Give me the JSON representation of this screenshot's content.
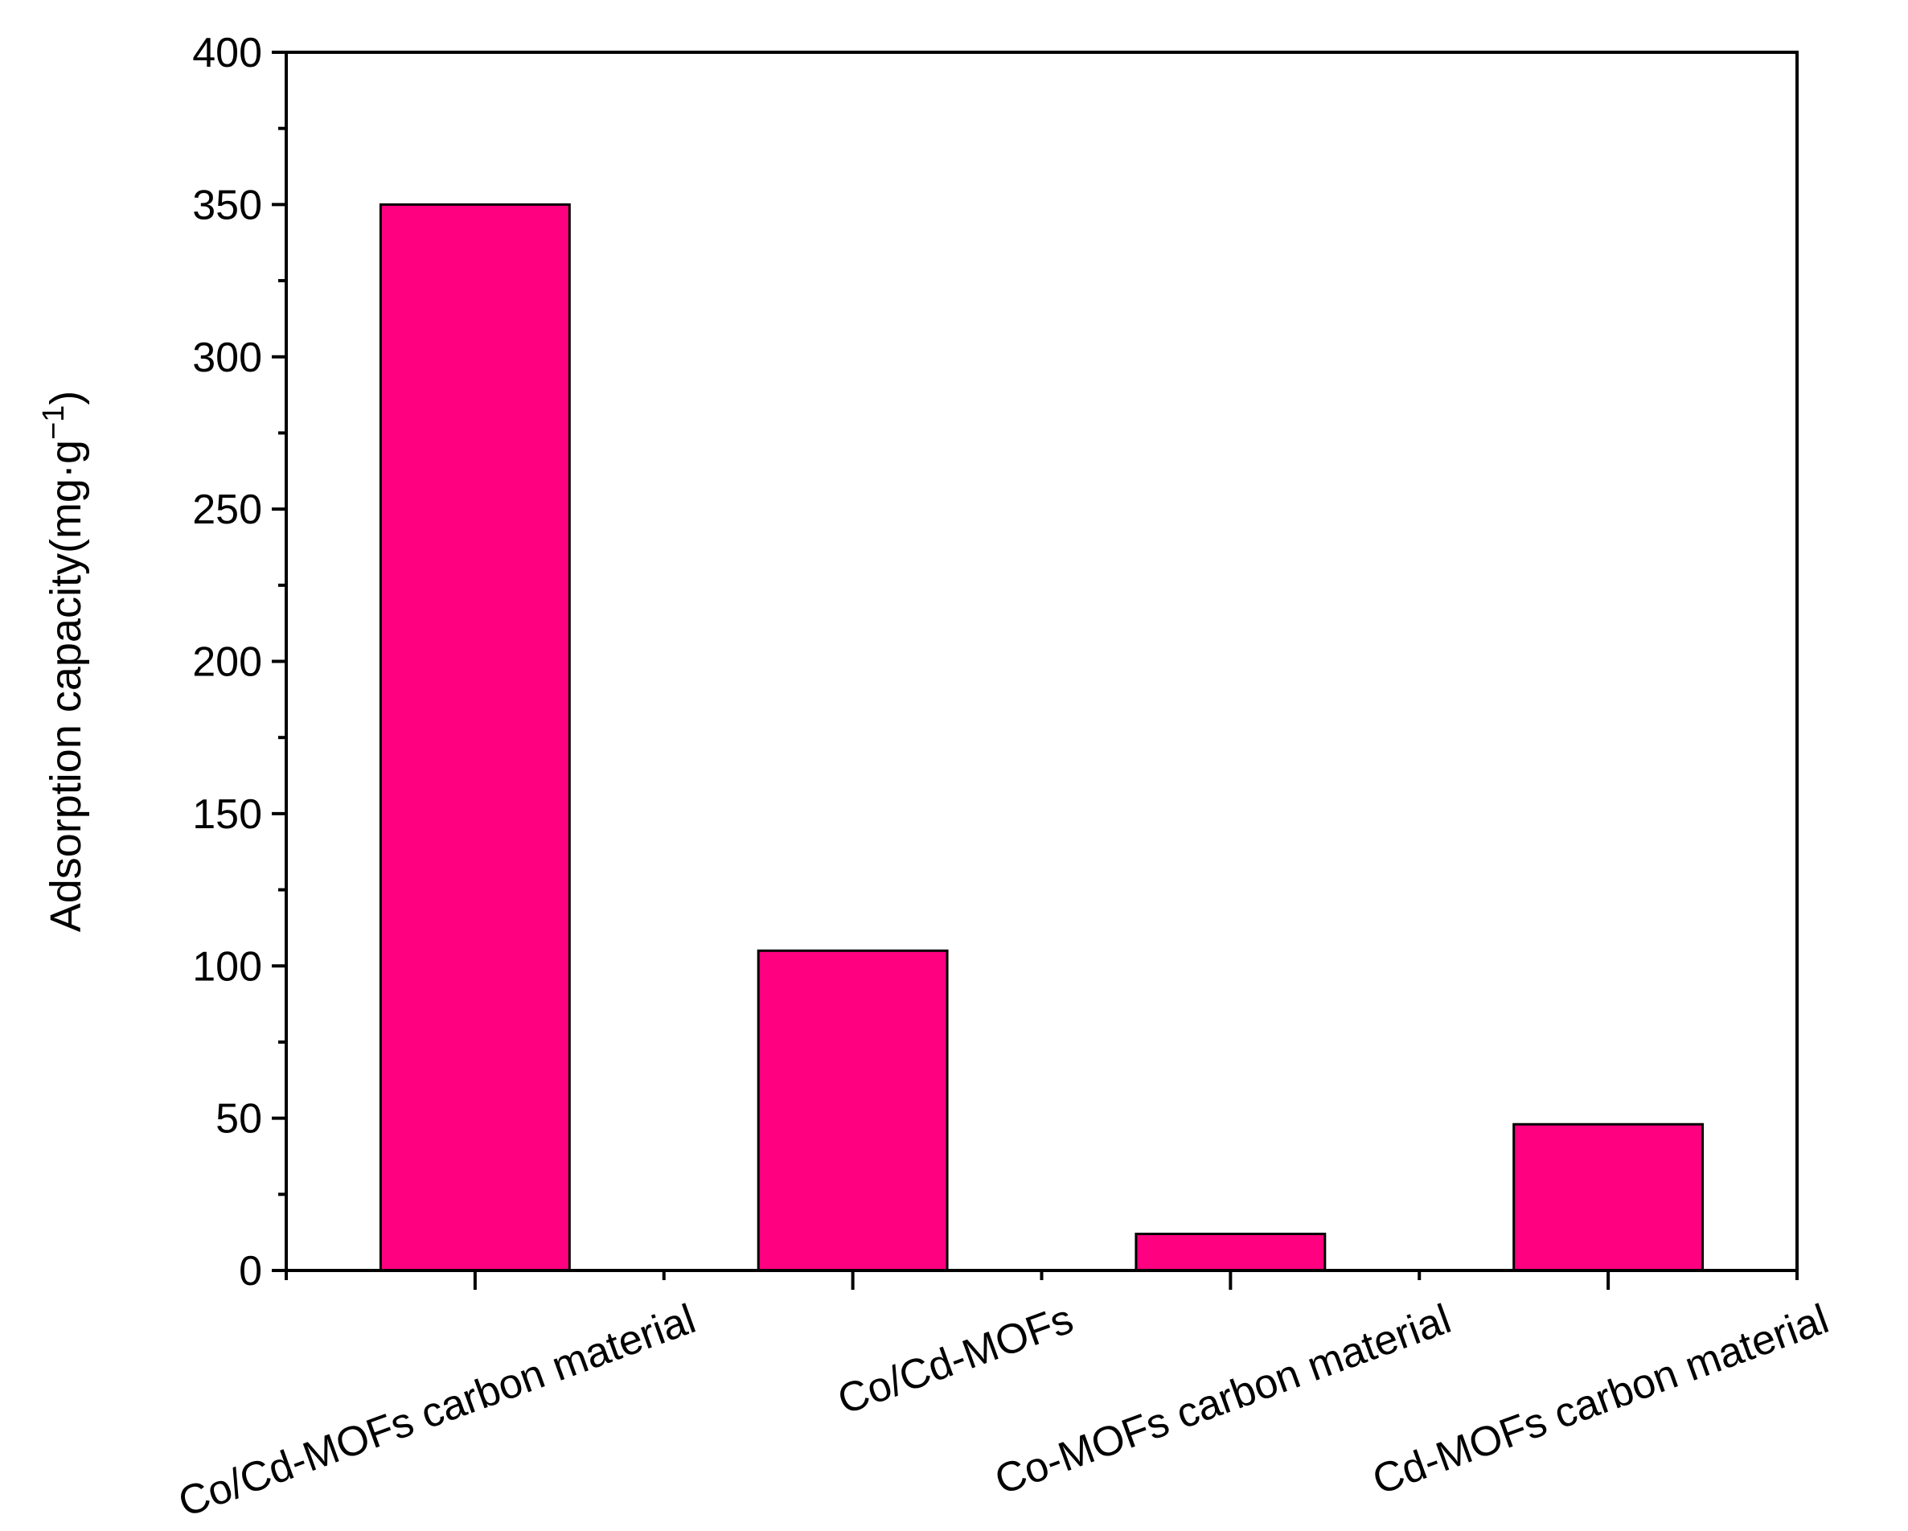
{
  "chart_data": {
    "type": "bar",
    "categories": [
      "Co/Cd-MOFs carbon material",
      "Co/Cd-MOFs",
      "Co-MOFs carbon material",
      "Cd-MOFs carbon material"
    ],
    "values": [
      350,
      105,
      12,
      48
    ],
    "xlabel": "",
    "ylabel": {
      "main": "Adsorption capacity(mg·g",
      "superscript": "−1",
      "close": ")"
    },
    "ylim": [
      0,
      400
    ],
    "yticks": [
      "0",
      "50",
      "100",
      "150",
      "200",
      "250",
      "300",
      "350",
      "400"
    ],
    "bar_color": "#ff0080",
    "grid": false,
    "legend": "none"
  }
}
